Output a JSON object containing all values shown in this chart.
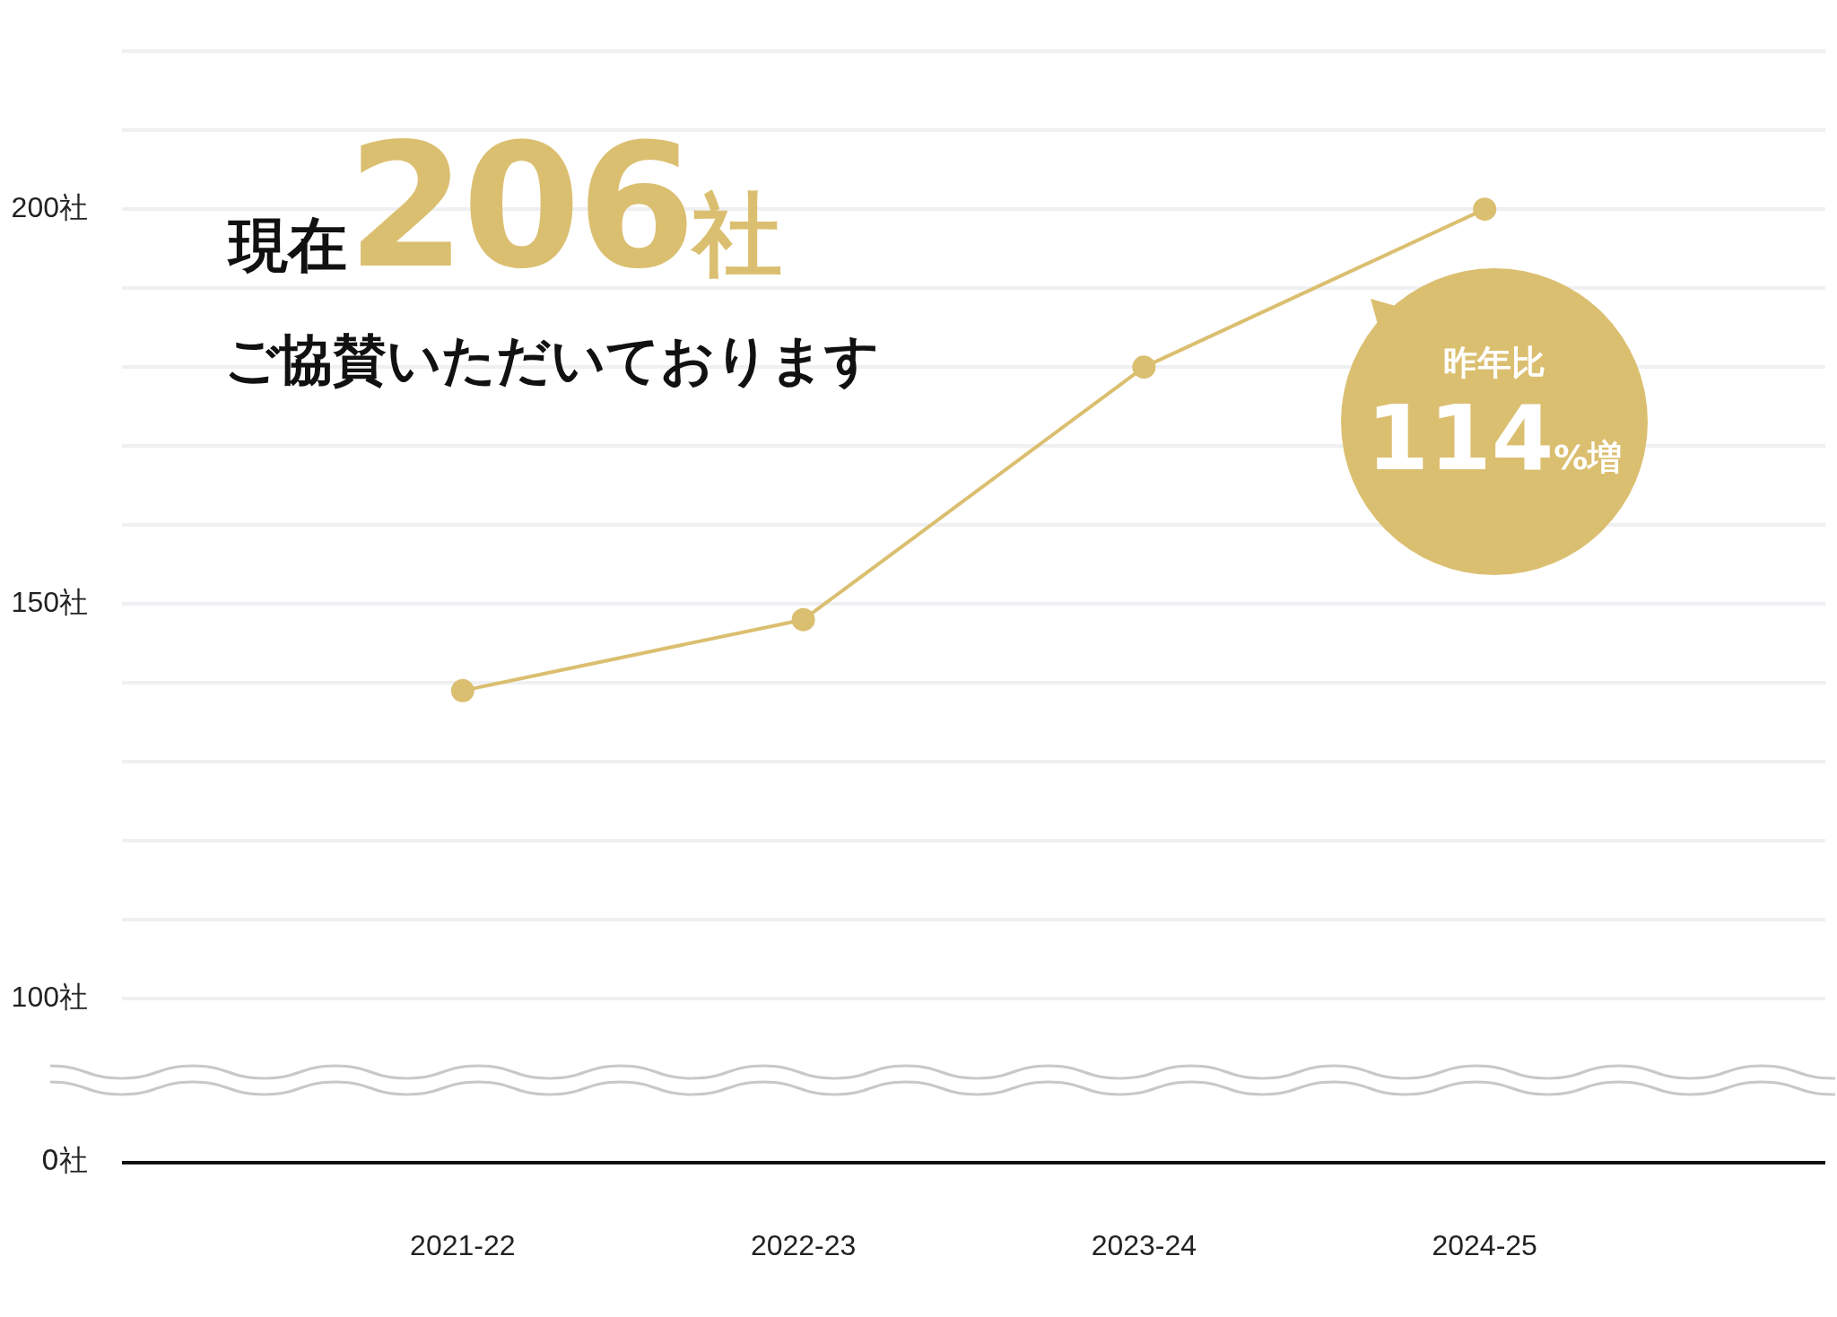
{
  "chart_data": {
    "type": "line",
    "title": "現在206社",
    "subtitle": "ご協賛いただいております",
    "categories": [
      null,
      "2021-22",
      "2022-23",
      "2023-24",
      "2024-25",
      null
    ],
    "series": [
      {
        "color": "#dbbf70",
        "values": [
          null,
          139,
          148,
          180,
          200,
          null
        ]
      }
    ],
    "ylim": [
      100,
      220
    ],
    "yticks": [
      {
        "value": 100,
        "label": "100社"
      },
      {
        "value": 110,
        "label": null
      },
      {
        "value": 120,
        "label": null
      },
      {
        "value": 130,
        "label": null
      },
      {
        "value": 140,
        "label": null
      },
      {
        "value": 150,
        "label": "150社"
      },
      {
        "value": 160,
        "label": null
      },
      {
        "value": 170,
        "label": null
      },
      {
        "value": 180,
        "label": null
      },
      {
        "value": 190,
        "label": null
      },
      {
        "value": 200,
        "label": "200社"
      },
      {
        "value": 210,
        "label": null
      },
      {
        "value": 220,
        "label": null
      }
    ],
    "grid": "y",
    "legend": false,
    "marker": "circle",
    "line_style": "solid",
    "annotations": [
      "0社",
      "昨年比 114%増"
    ]
  }
}
